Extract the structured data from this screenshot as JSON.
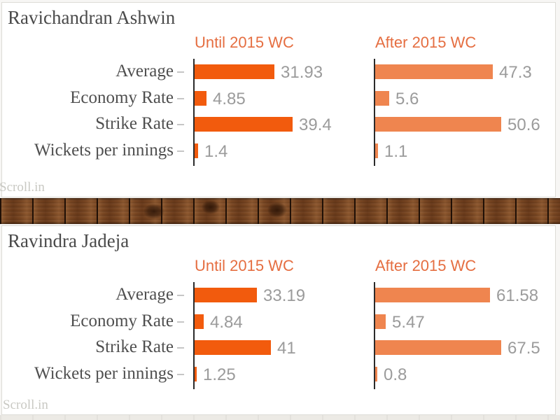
{
  "watermark": "Scroll.in",
  "charts_meta": {
    "header_color": "#e56e41",
    "axis_color": "#2b2b2b",
    "value_label_color": "#9b9b9b",
    "until_bar_color": "#f25b0d",
    "after_bar_color": "#ef854f"
  },
  "chart_data": [
    {
      "type": "bar",
      "orientation": "horizontal",
      "title": "Ravichandran Ashwin",
      "categories": [
        "Average",
        "Economy Rate",
        "Strike Rate",
        "Wickets per innings"
      ],
      "series": [
        {
          "name": "Until 2015 WC",
          "color": "#f25b0d",
          "values": [
            31.93,
            4.85,
            39.4,
            1.4
          ]
        },
        {
          "name": "After 2015 WC",
          "color": "#ef854f",
          "values": [
            47.3,
            5.6,
            50.6,
            1.1
          ]
        }
      ],
      "value_labels_shown": true,
      "watermark": "Scroll.in"
    },
    {
      "type": "bar",
      "orientation": "horizontal",
      "title": "Ravindra Jadeja",
      "categories": [
        "Average",
        "Economy Rate",
        "Strike Rate",
        "Wickets per innings"
      ],
      "series": [
        {
          "name": "Until 2015 WC",
          "color": "#f25b0d",
          "values": [
            33.19,
            4.84,
            41,
            1.25
          ]
        },
        {
          "name": "After 2015 WC",
          "color": "#ef854f",
          "values": [
            61.58,
            5.47,
            67.5,
            0.8
          ]
        }
      ],
      "value_labels_shown": true,
      "watermark": "Scroll.in"
    }
  ]
}
